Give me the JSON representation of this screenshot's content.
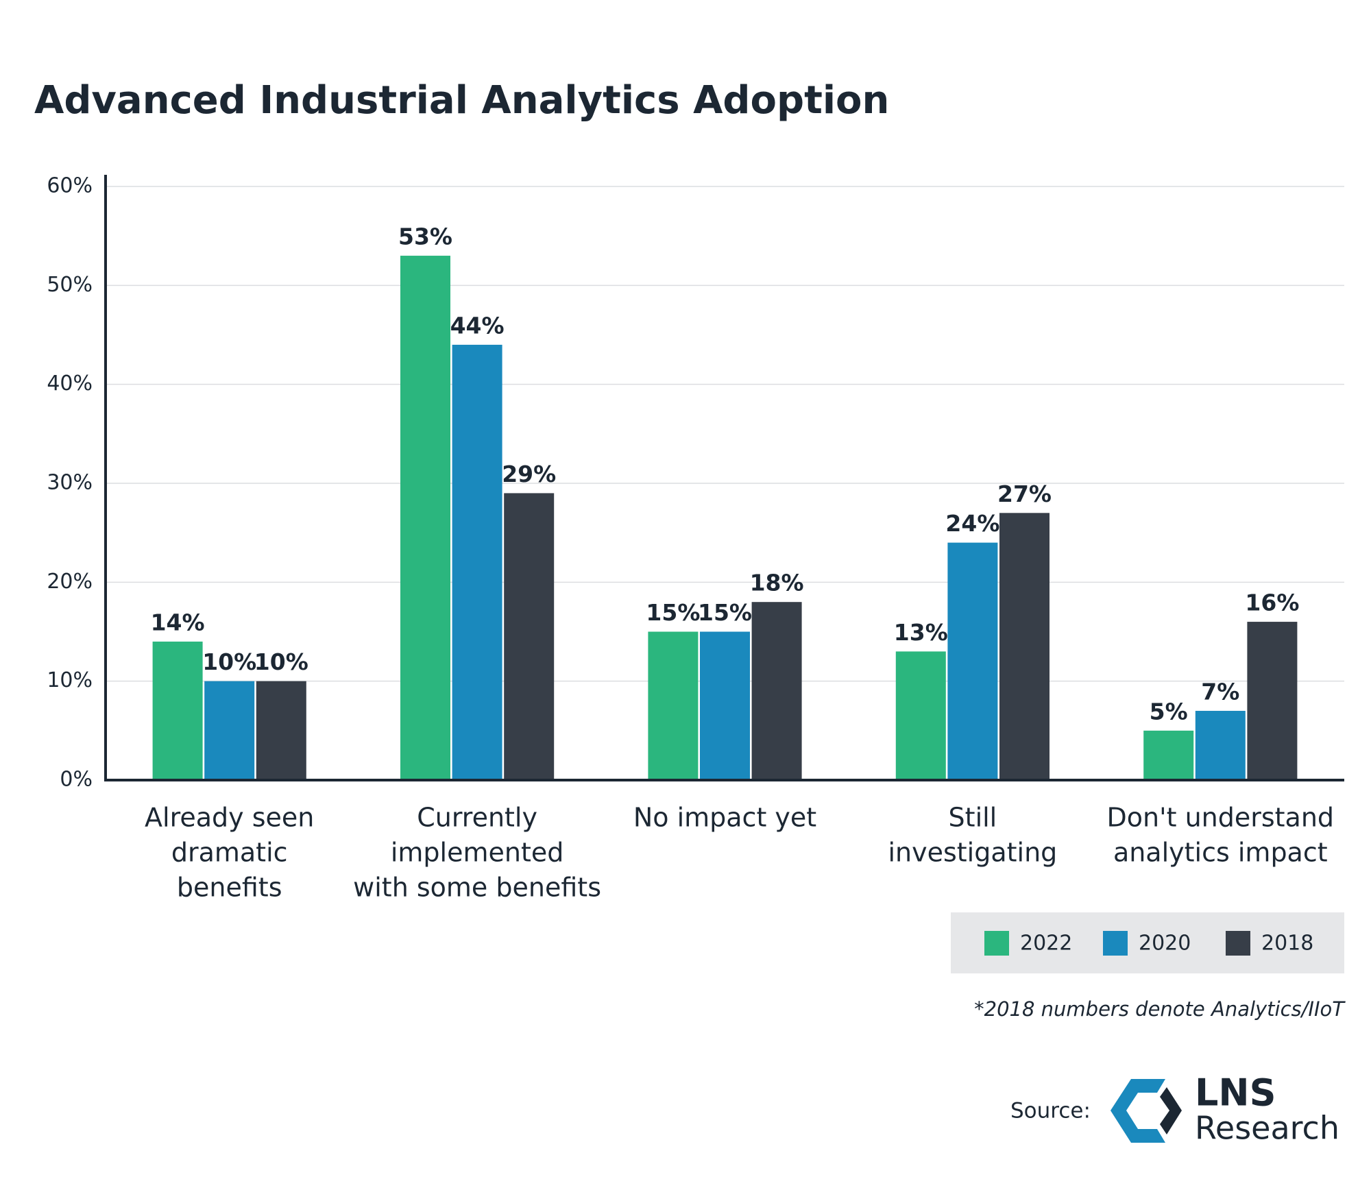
{
  "chart_data": {
    "type": "bar",
    "title": "Advanced Industrial Analytics Adoption",
    "categories": [
      [
        "Already seen",
        "dramatic",
        "benefits"
      ],
      [
        "Currently",
        "implemented",
        "with some benefits"
      ],
      [
        "No impact yet"
      ],
      [
        "Still",
        "investigating"
      ],
      [
        "Don't understand",
        "analytics impact"
      ]
    ],
    "series": [
      {
        "name": "2022",
        "color": "#2bb67e",
        "values": [
          14,
          53,
          15,
          13,
          5
        ],
        "value_labels": [
          "14%",
          "53%",
          "15%",
          "13%",
          "5%"
        ]
      },
      {
        "name": "2020",
        "color": "#1a89bd",
        "values": [
          10,
          44,
          15,
          24,
          7
        ],
        "value_labels": [
          "10%",
          "44%",
          "15%",
          "24%",
          "7%"
        ]
      },
      {
        "name": "2018",
        "color": "#373e48",
        "values": [
          10,
          29,
          18,
          27,
          16
        ],
        "value_labels": [
          "10%",
          "29%",
          "18%",
          "27%",
          "16%"
        ]
      }
    ],
    "ylim": [
      0,
      60
    ],
    "yticks": [
      {
        "value": 0,
        "label": "0%"
      },
      {
        "value": 10,
        "label": "10%"
      },
      {
        "value": 20,
        "label": "20%"
      },
      {
        "value": 30,
        "label": "30%"
      },
      {
        "value": 40,
        "label": "40%"
      },
      {
        "value": 50,
        "label": "50%"
      },
      {
        "value": 60,
        "label": "60%"
      }
    ],
    "grid": true,
    "footnote": "*2018 numbers denote Analytics/IIoT",
    "source_label": "Source:",
    "logo_text": {
      "top": "LNS",
      "bottom": "Research"
    }
  }
}
